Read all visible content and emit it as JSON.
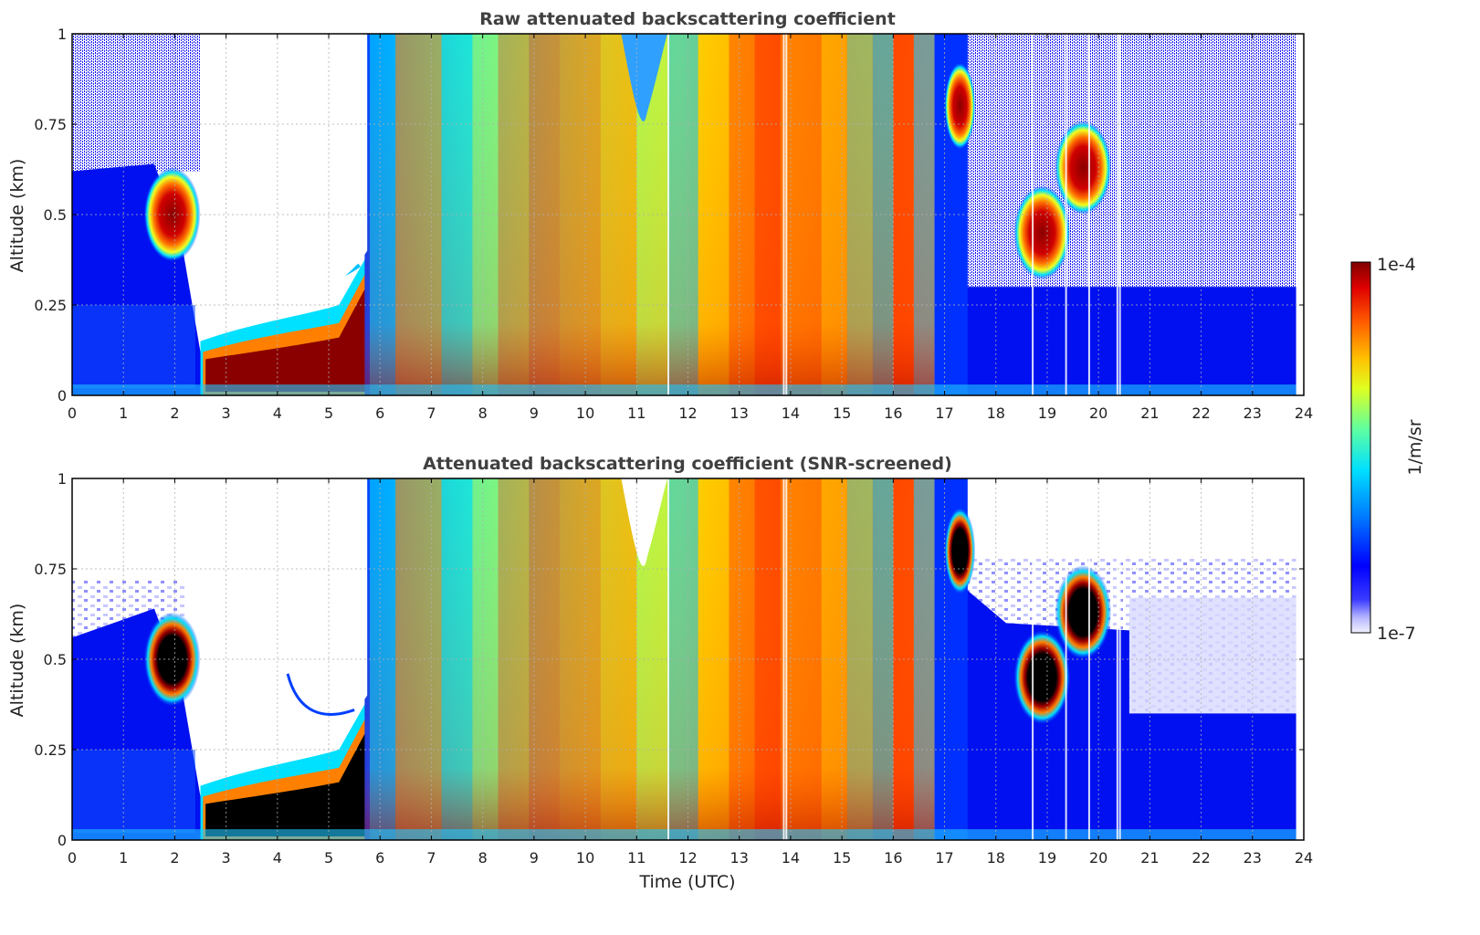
{
  "figure": {
    "colorbar": {
      "label": "1/m/sr",
      "max_label": "1e-4",
      "min_label": "1e-7",
      "scale": "log",
      "range": [
        1e-07,
        0.0001
      ],
      "colormap": "jet"
    },
    "xlabel": "Time (UTC)"
  },
  "chart_data": [
    {
      "type": "heatmap",
      "title": "Raw attenuated backscattering coefficient",
      "xlabel": "",
      "ylabel": "Altitude (km)",
      "xlim": [
        0,
        24
      ],
      "ylim": [
        0,
        1
      ],
      "xticks": [
        "0",
        "1",
        "2",
        "3",
        "4",
        "5",
        "6",
        "7",
        "8",
        "9",
        "10",
        "11",
        "12",
        "13",
        "14",
        "15",
        "16",
        "17",
        "18",
        "19",
        "20",
        "21",
        "22",
        "23",
        "24"
      ],
      "yticks": [
        "0",
        "0.25",
        "0.5",
        "0.75",
        "1"
      ],
      "grid": true,
      "cloud_layers": [
        {
          "t": 1.95,
          "alt": 0.5
        },
        {
          "t": 17.3,
          "alt": 0.8
        },
        {
          "t": 18.9,
          "alt": 0.45
        },
        {
          "t": 19.7,
          "alt": 0.63
        }
      ]
    },
    {
      "type": "heatmap",
      "title": "Attenuated backscattering coefficient (SNR-screened)",
      "xlabel": "Time (UTC)",
      "ylabel": "Altitude (km)",
      "xlim": [
        0,
        24
      ],
      "ylim": [
        0,
        1
      ],
      "xticks": [
        "0",
        "1",
        "2",
        "3",
        "4",
        "5",
        "6",
        "7",
        "8",
        "9",
        "10",
        "11",
        "12",
        "13",
        "14",
        "15",
        "16",
        "17",
        "18",
        "19",
        "20",
        "21",
        "22",
        "23",
        "24"
      ],
      "yticks": [
        "0",
        "0.25",
        "0.5",
        "0.75",
        "1"
      ],
      "grid": true,
      "cloud_layers": [
        {
          "t": 1.95,
          "alt": 0.5
        },
        {
          "t": 17.3,
          "alt": 0.8
        },
        {
          "t": 18.9,
          "alt": 0.45
        },
        {
          "t": 19.7,
          "alt": 0.63
        }
      ]
    }
  ]
}
